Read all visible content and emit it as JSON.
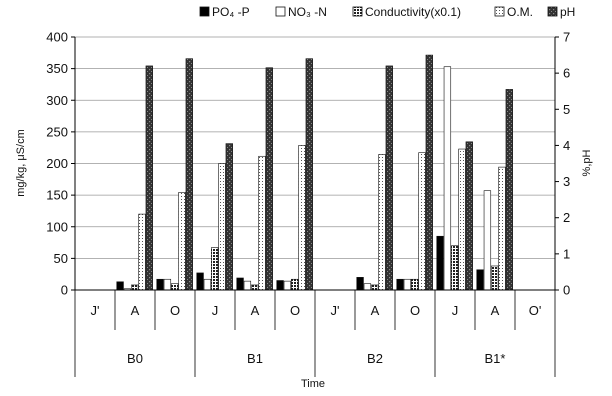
{
  "chart_data": {
    "type": "bar",
    "xlabel": "Time",
    "ylabel_left": "mg/kg, μS/cm",
    "ylabel_right": "%,pH",
    "ylim_left": [
      0,
      400
    ],
    "ylim_right": [
      0,
      7
    ],
    "yticks_left": [
      "0",
      "50",
      "100",
      "150",
      "200",
      "250",
      "300",
      "350",
      "400"
    ],
    "yticks_right": [
      "0",
      "1",
      "2",
      "3",
      "4",
      "5",
      "6",
      "7"
    ],
    "grid": true,
    "legend_position": "top",
    "groups": [
      {
        "label": "B0",
        "months": [
          "J'",
          "A",
          "O"
        ]
      },
      {
        "label": "B1",
        "months": [
          "J",
          "A",
          "O"
        ]
      },
      {
        "label": "B2",
        "months": [
          "J'",
          "A",
          "O"
        ]
      },
      {
        "label": "B1*",
        "months": [
          "J",
          "A",
          "O'"
        ]
      }
    ],
    "series": [
      {
        "name": "PO₄ -P",
        "axis": "left",
        "pattern": "black",
        "values": [
          0,
          13,
          17,
          27,
          19,
          15,
          0,
          20,
          17,
          85,
          32,
          0
        ]
      },
      {
        "name": "NO₃ -N",
        "axis": "left",
        "pattern": "white",
        "values": [
          0,
          2,
          17,
          17,
          14,
          14,
          0,
          10,
          17,
          353,
          157,
          0
        ]
      },
      {
        "name": "Conductivity(x0.1)",
        "axis": "left",
        "pattern": "cross",
        "values": [
          0,
          8,
          10,
          67,
          8,
          17,
          0,
          8,
          17,
          70,
          38,
          0
        ]
      },
      {
        "name": "O.M.",
        "axis": "right",
        "pattern": "dots",
        "values": [
          0,
          2.1,
          2.7,
          3.5,
          3.7,
          4.0,
          0,
          3.75,
          3.8,
          3.9,
          3.4,
          0
        ]
      },
      {
        "name": "pH",
        "axis": "right",
        "pattern": "dark",
        "values": [
          0,
          6.2,
          6.4,
          4.05,
          6.15,
          6.4,
          0,
          6.2,
          6.5,
          4.1,
          5.55,
          0
        ]
      }
    ]
  }
}
